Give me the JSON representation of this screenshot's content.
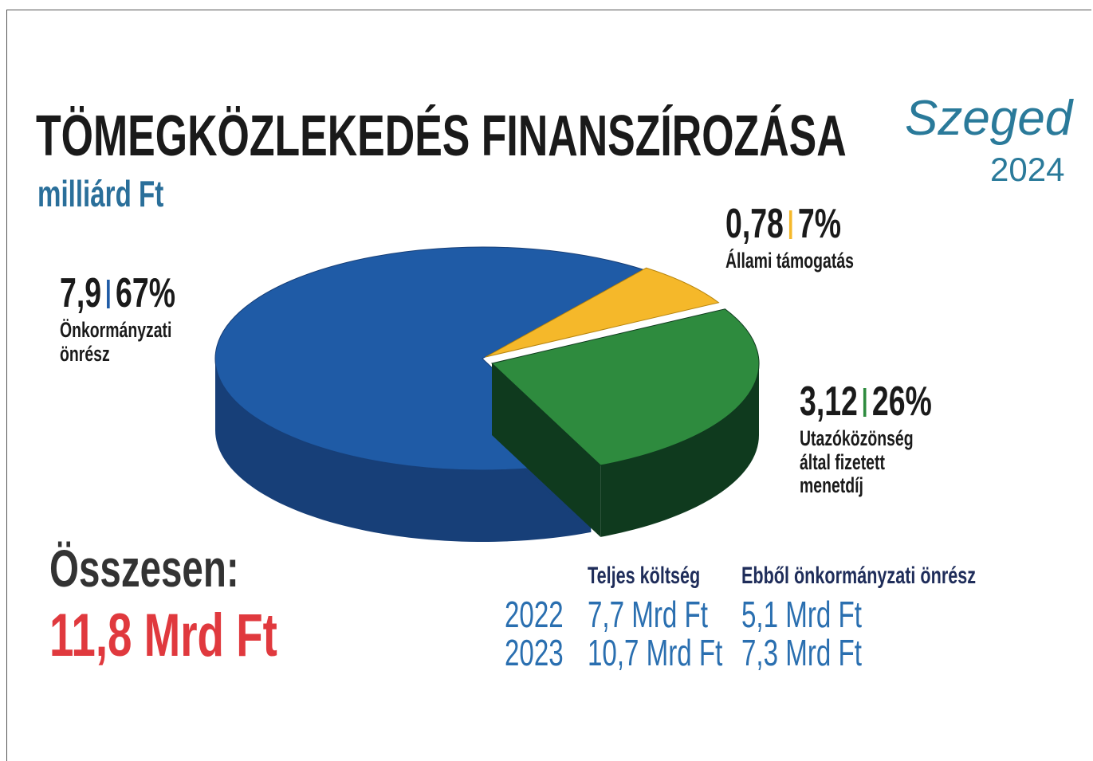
{
  "chart_data": {
    "type": "pie",
    "title": "TÖMEGKÖZLEKEDÉS FINANSZÍROZÁSA",
    "subtitle": "milliárd Ft",
    "categories": [
      "Önkormányzati önrész",
      "Állami támogatás",
      "Utazóközönség által fizetett menetdíj"
    ],
    "values": [
      7.9,
      0.78,
      3.12
    ],
    "value_labels": [
      "7,9",
      "0,78",
      "3,12"
    ],
    "percents": [
      67,
      7,
      26
    ],
    "percent_labels": [
      "67%",
      "7%",
      "26%"
    ],
    "colors": [
      "#1f5ba6",
      "#f5b82a",
      "#2e8b3e"
    ],
    "side_colors": [
      "#173f78",
      "#b8860f",
      "#0f3a1e"
    ],
    "total_label": "Összesen:",
    "total": {
      "value": 11.8,
      "label": "11,8 Mrd Ft"
    }
  },
  "table": {
    "header": [
      "Teljes költség",
      "Ebből önkormányzati önrész"
    ],
    "rows": [
      [
        "2022",
        "7,7 Mrd Ft",
        "5,1 Mrd Ft"
      ],
      [
        "2023",
        "10,7 Mrd Ft",
        "7,3 Mrd Ft"
      ]
    ]
  },
  "logo": {
    "text": "Szeged",
    "year": "2024"
  }
}
